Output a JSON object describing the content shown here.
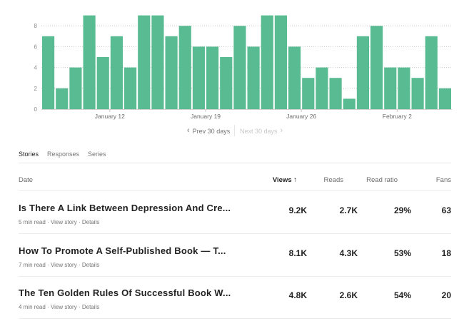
{
  "chart_data": {
    "type": "bar",
    "values": [
      7,
      2,
      4,
      9,
      5,
      7,
      4,
      9,
      9,
      7,
      8,
      6,
      6,
      5,
      8,
      6,
      9,
      9,
      6,
      3,
      4,
      3,
      1,
      7,
      8,
      4,
      4,
      3,
      7,
      2
    ],
    "y_ticks": [
      "0",
      "2",
      "4",
      "6",
      "8"
    ],
    "ylim": [
      0,
      9
    ],
    "x_tick_labels": [
      {
        "label": "January 12",
        "index": 5
      },
      {
        "label": "January 19",
        "index": 12
      },
      {
        "label": "January 26",
        "index": 19
      },
      {
        "label": "February 2",
        "index": 26
      }
    ],
    "bar_color": "#59bb91",
    "grid": true
  },
  "nav": {
    "prev_label": "Prev 30 days",
    "next_label": "Next 30 days",
    "prev_icon": "chevron-left-icon",
    "next_icon": "chevron-right-icon"
  },
  "tabs": [
    {
      "label": "Stories",
      "active": true
    },
    {
      "label": "Responses",
      "active": false
    },
    {
      "label": "Series",
      "active": false
    }
  ],
  "table": {
    "headers": {
      "date": "Date",
      "views": "Views",
      "views_sort_icon": "↑",
      "reads": "Reads",
      "ratio": "Read ratio",
      "fans": "Fans"
    },
    "rows": [
      {
        "title": "Is There A Link Between Depression And Cre...",
        "read_time": "5 min read",
        "sep1": "·",
        "view_story": "View story",
        "sep2": "·",
        "details": "Details",
        "views": "9.2K",
        "reads": "2.7K",
        "ratio": "29%",
        "fans": "63"
      },
      {
        "title": "How To Promote A Self-Published Book — T...",
        "read_time": "7 min read",
        "sep1": "·",
        "view_story": "View story",
        "sep2": "·",
        "details": "Details",
        "views": "8.1K",
        "reads": "4.3K",
        "ratio": "53%",
        "fans": "18"
      },
      {
        "title": "The Ten Golden Rules Of Successful Book W...",
        "read_time": "4 min read",
        "sep1": "·",
        "view_story": "View story",
        "sep2": "·",
        "details": "Details",
        "views": "4.8K",
        "reads": "2.6K",
        "ratio": "54%",
        "fans": "20"
      }
    ]
  }
}
